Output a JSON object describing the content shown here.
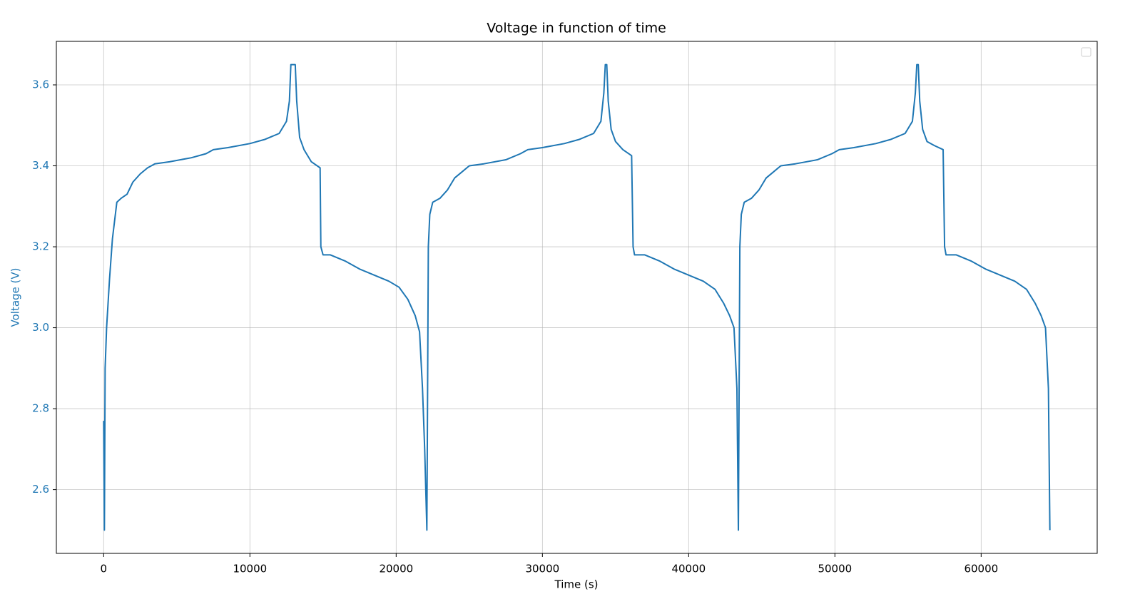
{
  "chart_data": {
    "type": "line",
    "title": "Voltage in function of time",
    "x_label": "Time (s)",
    "y_label": "Voltage (V)",
    "color": "#1f77b4",
    "y_axis_color": "#1f77b4",
    "grid": true,
    "legend": "upper right",
    "xlim": [
      -3235,
      67935
    ],
    "ylim": [
      2.4425,
      3.7075
    ],
    "xticks": [
      0,
      10000,
      20000,
      30000,
      40000,
      50000,
      60000
    ],
    "yticks": [
      2.6,
      2.8,
      {
        "value": 3,
        "label": "3.0"
      },
      3.2,
      3.4,
      3.6
    ],
    "x": [
      0,
      50,
      100,
      200,
      400,
      600,
      900,
      1200,
      1600,
      2000,
      2500,
      3000,
      3500,
      4500,
      6000,
      7000,
      7500,
      8500,
      10000,
      11000,
      12000,
      12500,
      12700,
      12800,
      13100,
      13200,
      13400,
      13700,
      14200,
      14800,
      14850,
      15000,
      15500,
      16500,
      17500,
      18500,
      19500,
      20200,
      20800,
      21300,
      21600,
      21800,
      21950,
      22100,
      22200,
      22300,
      22500,
      23000,
      23500,
      24000,
      24500,
      25000,
      26000,
      27500,
      28500,
      29000,
      30000,
      31500,
      32500,
      33500,
      34000,
      34200,
      34300,
      34400,
      34500,
      34700,
      35000,
      35500,
      36100,
      36200,
      36300,
      37000,
      38000,
      39000,
      40000,
      41000,
      41800,
      42400,
      42800,
      43100,
      43300,
      43400,
      43500,
      43600,
      43800,
      44300,
      44800,
      45300,
      45800,
      46300,
      47300,
      48800,
      49800,
      50300,
      51300,
      52800,
      53800,
      54800,
      55300,
      55500,
      55600,
      55700,
      55800,
      56000,
      56300,
      56800,
      57400,
      57500,
      57600,
      58300,
      59300,
      60300,
      61300,
      62300,
      63100,
      63700,
      64100,
      64400,
      64600,
      64700
    ],
    "values": [
      2.77,
      2.5,
      2.9,
      3.0,
      3.12,
      3.22,
      3.31,
      3.32,
      3.33,
      3.36,
      3.38,
      3.395,
      3.405,
      3.41,
      3.42,
      3.43,
      3.44,
      3.445,
      3.455,
      3.465,
      3.48,
      3.51,
      3.56,
      3.65,
      3.65,
      3.56,
      3.47,
      3.44,
      3.41,
      3.395,
      3.2,
      3.18,
      3.18,
      3.165,
      3.145,
      3.13,
      3.115,
      3.1,
      3.07,
      3.03,
      2.99,
      2.85,
      2.7,
      2.5,
      3.2,
      3.28,
      3.31,
      3.32,
      3.34,
      3.37,
      3.385,
      3.4,
      3.405,
      3.415,
      3.43,
      3.44,
      3.445,
      3.455,
      3.465,
      3.48,
      3.51,
      3.58,
      3.65,
      3.65,
      3.56,
      3.49,
      3.46,
      3.44,
      3.425,
      3.2,
      3.18,
      3.18,
      3.165,
      3.145,
      3.13,
      3.115,
      3.095,
      3.06,
      3.03,
      3.0,
      2.85,
      2.5,
      3.2,
      3.28,
      3.31,
      3.32,
      3.34,
      3.37,
      3.385,
      3.4,
      3.405,
      3.415,
      3.43,
      3.44,
      3.445,
      3.455,
      3.465,
      3.48,
      3.51,
      3.58,
      3.65,
      3.65,
      3.56,
      3.49,
      3.46,
      3.45,
      3.44,
      3.2,
      3.18,
      3.18,
      3.165,
      3.145,
      3.13,
      3.115,
      3.095,
      3.06,
      3.03,
      3.0,
      2.85,
      2.5
    ]
  }
}
